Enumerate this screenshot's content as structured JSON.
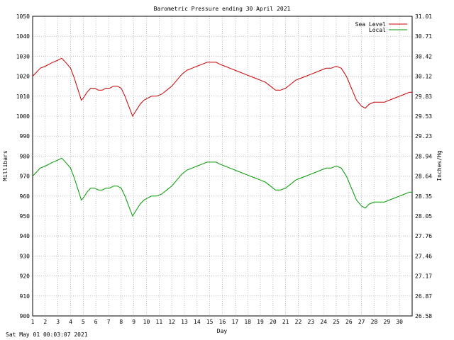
{
  "chart_data": {
    "type": "line",
    "title": "Barometric Pressure ending 30 April 2021",
    "xlabel": "Day",
    "ylabel": "Millibars",
    "y2label": "Inches/Hg",
    "xlim": [
      1,
      31
    ],
    "ylim": [
      900,
      1050
    ],
    "x_ticks": [
      "1",
      "2",
      "3",
      "4",
      "5",
      "6",
      "7",
      "8",
      "9",
      "10",
      "11",
      "12",
      "13",
      "14",
      "15",
      "16",
      "17",
      "18",
      "19",
      "20",
      "21",
      "22",
      "23",
      "24",
      "25",
      "26",
      "27",
      "28",
      "29",
      "30"
    ],
    "y_ticks": [
      "900",
      "910",
      "920",
      "930",
      "940",
      "950",
      "960",
      "970",
      "980",
      "990",
      "1000",
      "1010",
      "1020",
      "1030",
      "1040",
      "1050"
    ],
    "y2_ticks": [
      "26.58",
      "26.87",
      "27.17",
      "27.46",
      "27.76",
      "28.05",
      "28.35",
      "28.64",
      "28.94",
      "29.23",
      "29.53",
      "29.83",
      "30.12",
      "30.42",
      "30.71",
      "31.01"
    ],
    "grid": true,
    "legend_position": "top-right",
    "series": [
      {
        "name": "Sea Level",
        "color": "#cc0000",
        "points": [
          [
            1.0,
            1020
          ],
          [
            1.3,
            1022
          ],
          [
            1.6,
            1024
          ],
          [
            2.0,
            1025
          ],
          [
            2.3,
            1026
          ],
          [
            2.6,
            1027
          ],
          [
            3.0,
            1028
          ],
          [
            3.3,
            1029
          ],
          [
            3.6,
            1027
          ],
          [
            4.0,
            1024
          ],
          [
            4.3,
            1019
          ],
          [
            4.6,
            1013
          ],
          [
            4.85,
            1008
          ],
          [
            5.0,
            1009
          ],
          [
            5.3,
            1012
          ],
          [
            5.6,
            1014
          ],
          [
            5.9,
            1014
          ],
          [
            6.2,
            1013
          ],
          [
            6.5,
            1013
          ],
          [
            6.8,
            1014
          ],
          [
            7.1,
            1014
          ],
          [
            7.4,
            1015
          ],
          [
            7.7,
            1015
          ],
          [
            8.0,
            1014
          ],
          [
            8.3,
            1010
          ],
          [
            8.6,
            1005
          ],
          [
            8.9,
            1000
          ],
          [
            9.2,
            1003
          ],
          [
            9.5,
            1006
          ],
          [
            9.8,
            1008
          ],
          [
            10.1,
            1009
          ],
          [
            10.4,
            1010
          ],
          [
            10.8,
            1010
          ],
          [
            11.2,
            1011
          ],
          [
            11.6,
            1013
          ],
          [
            12.0,
            1015
          ],
          [
            12.4,
            1018
          ],
          [
            12.8,
            1021
          ],
          [
            13.2,
            1023
          ],
          [
            13.6,
            1024
          ],
          [
            14.0,
            1025
          ],
          [
            14.4,
            1026
          ],
          [
            14.8,
            1027
          ],
          [
            15.2,
            1027
          ],
          [
            15.5,
            1027
          ],
          [
            15.8,
            1026
          ],
          [
            16.2,
            1025
          ],
          [
            16.6,
            1024
          ],
          [
            17.0,
            1023
          ],
          [
            17.4,
            1022
          ],
          [
            17.8,
            1021
          ],
          [
            18.2,
            1020
          ],
          [
            18.6,
            1019
          ],
          [
            19.0,
            1018
          ],
          [
            19.4,
            1017
          ],
          [
            19.8,
            1015
          ],
          [
            20.2,
            1013
          ],
          [
            20.6,
            1013
          ],
          [
            21.0,
            1014
          ],
          [
            21.4,
            1016
          ],
          [
            21.8,
            1018
          ],
          [
            22.2,
            1019
          ],
          [
            22.6,
            1020
          ],
          [
            23.0,
            1021
          ],
          [
            23.4,
            1022
          ],
          [
            23.8,
            1023
          ],
          [
            24.2,
            1024
          ],
          [
            24.6,
            1024
          ],
          [
            25.0,
            1025
          ],
          [
            25.4,
            1024
          ],
          [
            25.8,
            1020
          ],
          [
            26.2,
            1014
          ],
          [
            26.6,
            1008
          ],
          [
            27.0,
            1005
          ],
          [
            27.3,
            1004
          ],
          [
            27.6,
            1006
          ],
          [
            28.0,
            1007
          ],
          [
            28.4,
            1007
          ],
          [
            28.8,
            1007
          ],
          [
            29.2,
            1008
          ],
          [
            29.6,
            1009
          ],
          [
            30.0,
            1010
          ],
          [
            30.4,
            1011
          ],
          [
            30.8,
            1012
          ],
          [
            31.0,
            1012
          ]
        ]
      },
      {
        "name": "Local",
        "color": "#009900",
        "points": [
          [
            1.0,
            970
          ],
          [
            1.3,
            972
          ],
          [
            1.6,
            974
          ],
          [
            2.0,
            975
          ],
          [
            2.3,
            976
          ],
          [
            2.6,
            977
          ],
          [
            3.0,
            978
          ],
          [
            3.3,
            979
          ],
          [
            3.6,
            977
          ],
          [
            4.0,
            974
          ],
          [
            4.3,
            969
          ],
          [
            4.6,
            963
          ],
          [
            4.85,
            958
          ],
          [
            5.0,
            959
          ],
          [
            5.3,
            962
          ],
          [
            5.6,
            964
          ],
          [
            5.9,
            964
          ],
          [
            6.2,
            963
          ],
          [
            6.5,
            963
          ],
          [
            6.8,
            964
          ],
          [
            7.1,
            964
          ],
          [
            7.4,
            965
          ],
          [
            7.7,
            965
          ],
          [
            8.0,
            964
          ],
          [
            8.3,
            960
          ],
          [
            8.6,
            955
          ],
          [
            8.9,
            950
          ],
          [
            9.2,
            953
          ],
          [
            9.5,
            956
          ],
          [
            9.8,
            958
          ],
          [
            10.1,
            959
          ],
          [
            10.4,
            960
          ],
          [
            10.8,
            960
          ],
          [
            11.2,
            961
          ],
          [
            11.6,
            963
          ],
          [
            12.0,
            965
          ],
          [
            12.4,
            968
          ],
          [
            12.8,
            971
          ],
          [
            13.2,
            973
          ],
          [
            13.6,
            974
          ],
          [
            14.0,
            975
          ],
          [
            14.4,
            976
          ],
          [
            14.8,
            977
          ],
          [
            15.2,
            977
          ],
          [
            15.5,
            977
          ],
          [
            15.8,
            976
          ],
          [
            16.2,
            975
          ],
          [
            16.6,
            974
          ],
          [
            17.0,
            973
          ],
          [
            17.4,
            972
          ],
          [
            17.8,
            971
          ],
          [
            18.2,
            970
          ],
          [
            18.6,
            969
          ],
          [
            19.0,
            968
          ],
          [
            19.4,
            967
          ],
          [
            19.8,
            965
          ],
          [
            20.2,
            963
          ],
          [
            20.6,
            963
          ],
          [
            21.0,
            964
          ],
          [
            21.4,
            966
          ],
          [
            21.8,
            968
          ],
          [
            22.2,
            969
          ],
          [
            22.6,
            970
          ],
          [
            23.0,
            971
          ],
          [
            23.4,
            972
          ],
          [
            23.8,
            973
          ],
          [
            24.2,
            974
          ],
          [
            24.6,
            974
          ],
          [
            25.0,
            975
          ],
          [
            25.4,
            974
          ],
          [
            25.8,
            970
          ],
          [
            26.2,
            964
          ],
          [
            26.6,
            958
          ],
          [
            27.0,
            955
          ],
          [
            27.3,
            954
          ],
          [
            27.6,
            956
          ],
          [
            28.0,
            957
          ],
          [
            28.4,
            957
          ],
          [
            28.8,
            957
          ],
          [
            29.2,
            958
          ],
          [
            29.6,
            959
          ],
          [
            30.0,
            960
          ],
          [
            30.4,
            961
          ],
          [
            30.8,
            962
          ],
          [
            31.0,
            962
          ]
        ]
      }
    ]
  },
  "footer": {
    "timestamp": "Sat May 01 00:03:07 2021"
  }
}
